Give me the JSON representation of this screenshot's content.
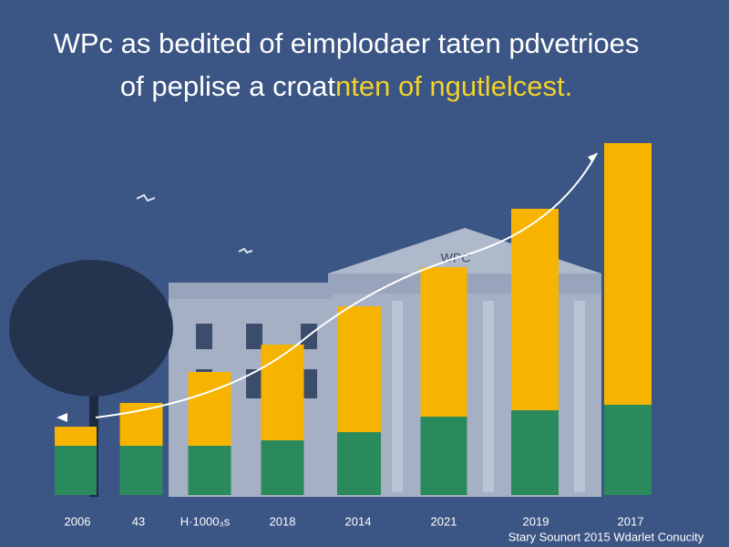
{
  "chart_data": {
    "type": "stacked_bar",
    "title": "WPc as bedited of eimplodaer taten pdvetrioes",
    "subtitle": "of peplise a croat",
    "subtitle_highlight": "nten of ngutlelcest.",
    "annotation": "WPC",
    "source": "Stary Sounort 2015 Wdarlet Conucity",
    "categories": [
      "2006",
      "43",
      "H·1000₃s",
      "2018",
      "2014",
      "2021",
      "2019",
      "2017"
    ],
    "series": [
      {
        "color": "#2a8a5c",
        "values": [
          54,
          54,
          54,
          60,
          69,
          86,
          93,
          99
        ]
      },
      {
        "color": "#f6b400",
        "values": [
          21,
          47,
          81,
          105,
          138,
          164,
          221,
          287
        ]
      }
    ],
    "ylim": [
      0,
      400
    ]
  }
}
